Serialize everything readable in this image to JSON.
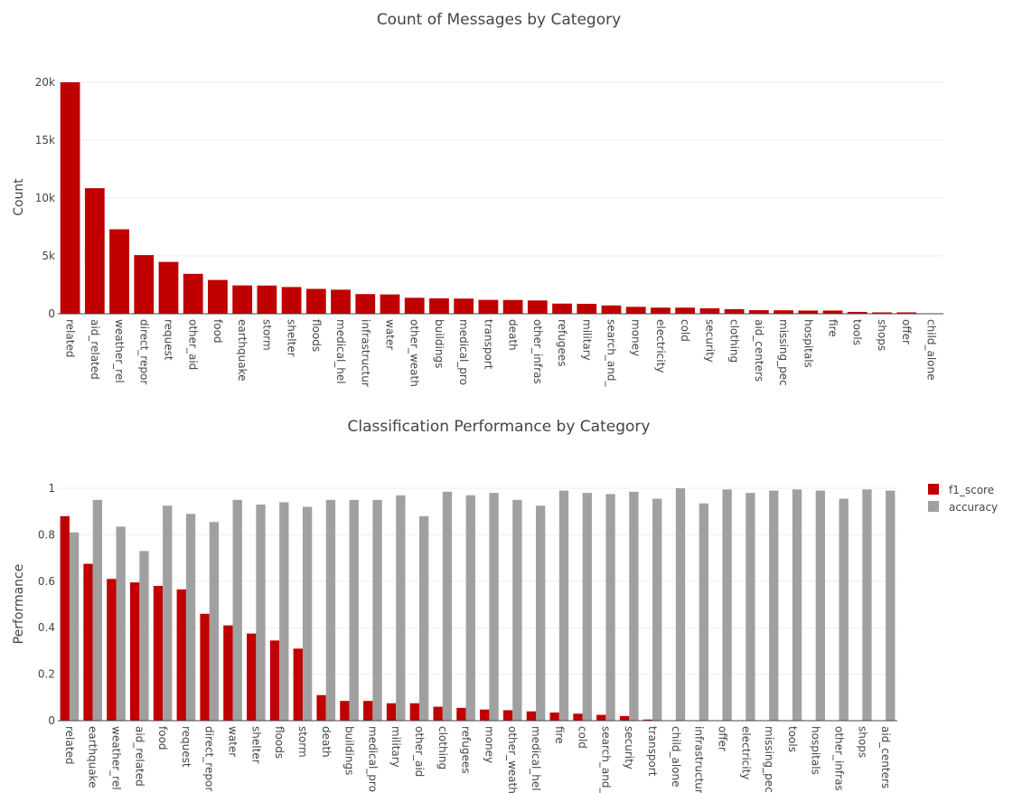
{
  "colors": {
    "bar_primary": "#c00000",
    "bar_secondary": "#a0a0a0",
    "grid": "#eeeeee",
    "axis": "#444444"
  },
  "chart_data": [
    {
      "type": "bar",
      "title": "Count of Messages by Category",
      "xlabel": "",
      "ylabel": "Count",
      "ylim": [
        0,
        20000
      ],
      "ytick_labels": [
        "0",
        "5k",
        "10k",
        "15k",
        "20k"
      ],
      "ytick_values": [
        0,
        5000,
        10000,
        15000,
        20000
      ],
      "grid": true,
      "categories": [
        "related",
        "aid_related",
        "weather_rel",
        "direct_repor",
        "request",
        "other_aid",
        "food",
        "earthquake",
        "storm",
        "shelter",
        "floods",
        "medical_hel",
        "infrastructur",
        "water",
        "other_weath",
        "buildings",
        "medical_pro",
        "transport",
        "death",
        "other_infras",
        "refugees",
        "military",
        "search_and_",
        "money",
        "electricity",
        "cold",
        "security",
        "clothing",
        "aid_centers",
        "missing_pec",
        "hospitals",
        "fire",
        "tools",
        "shops",
        "offer",
        "child_alone"
      ],
      "series": [
        {
          "color": "#c00000",
          "values": [
            20000,
            10850,
            7300,
            5070,
            4480,
            3450,
            2920,
            2450,
            2440,
            2310,
            2150,
            2080,
            1700,
            1670,
            1380,
            1330,
            1310,
            1200,
            1190,
            1150,
            880,
            860,
            720,
            600,
            530,
            530,
            470,
            400,
            310,
            300,
            280,
            280,
            160,
            120,
            120,
            0
          ]
        }
      ]
    },
    {
      "type": "bar",
      "title": "Classification Performance by Category",
      "xlabel": "",
      "ylabel": "Performance",
      "ylim": [
        0,
        1
      ],
      "ytick_labels": [
        "0",
        "0.2",
        "0.4",
        "0.6",
        "0.8",
        "1"
      ],
      "ytick_values": [
        0,
        0.2,
        0.4,
        0.6,
        0.8,
        1
      ],
      "grid": true,
      "legend_position": "top-right",
      "categories": [
        "related",
        "earthquake",
        "weather_rel",
        "aid_related",
        "food",
        "request",
        "direct_repor",
        "water",
        "shelter",
        "floods",
        "storm",
        "death",
        "buildings",
        "medical_pro",
        "military",
        "other_aid",
        "clothing",
        "refugees",
        "money",
        "other_weath",
        "medical_hel",
        "fire",
        "cold",
        "search_and_",
        "security",
        "transport",
        "child_alone",
        "infrastructur",
        "offer",
        "electricity",
        "missing_pec",
        "tools",
        "hospitals",
        "other_infras",
        "shops",
        "aid_centers"
      ],
      "series": [
        {
          "name": "f1_score",
          "color": "#c00000",
          "values": [
            0.88,
            0.675,
            0.61,
            0.595,
            0.58,
            0.565,
            0.46,
            0.41,
            0.375,
            0.345,
            0.31,
            0.11,
            0.085,
            0.085,
            0.075,
            0.075,
            0.06,
            0.055,
            0.048,
            0.045,
            0.04,
            0.035,
            0.03,
            0.025,
            0.02,
            0.005,
            0,
            0,
            0,
            0,
            0,
            0,
            0,
            0,
            0,
            0
          ]
        },
        {
          "name": "accuracy",
          "color": "#a0a0a0",
          "values": [
            0.81,
            0.95,
            0.835,
            0.73,
            0.925,
            0.89,
            0.855,
            0.95,
            0.93,
            0.94,
            0.92,
            0.95,
            0.95,
            0.95,
            0.97,
            0.88,
            0.985,
            0.97,
            0.98,
            0.95,
            0.925,
            0.99,
            0.98,
            0.975,
            0.985,
            0.955,
            1.0,
            0.935,
            0.995,
            0.98,
            0.99,
            0.995,
            0.99,
            0.955,
            0.995,
            0.99
          ]
        }
      ]
    }
  ]
}
